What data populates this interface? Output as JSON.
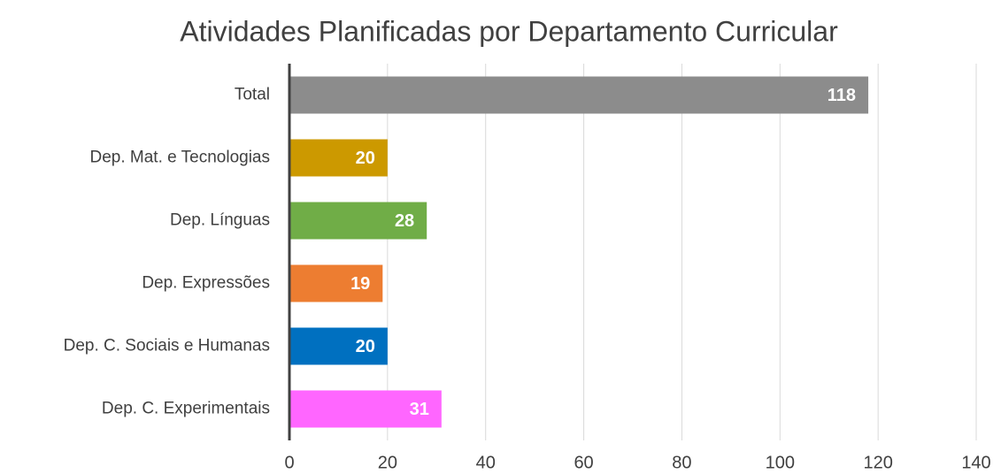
{
  "chart_data": {
    "type": "bar",
    "orientation": "horizontal",
    "title": "Atividades Planificadas por Departamento Curricular",
    "categories": [
      "Total",
      "Dep. Mat. e Tecnologias",
      "Dep. Línguas",
      "Dep. Expressões",
      "Dep. C. Sociais e Humanas",
      "Dep. C. Experimentais"
    ],
    "values": [
      118,
      20,
      28,
      19,
      20,
      31
    ],
    "colors": [
      "#8c8c8c",
      "#cc9900",
      "#70ad47",
      "#ed7d31",
      "#0070c0",
      "#ff66ff"
    ],
    "xlim": [
      0,
      140
    ],
    "xticks": [
      0,
      20,
      40,
      60,
      80,
      100,
      120,
      140
    ],
    "grid": true
  }
}
